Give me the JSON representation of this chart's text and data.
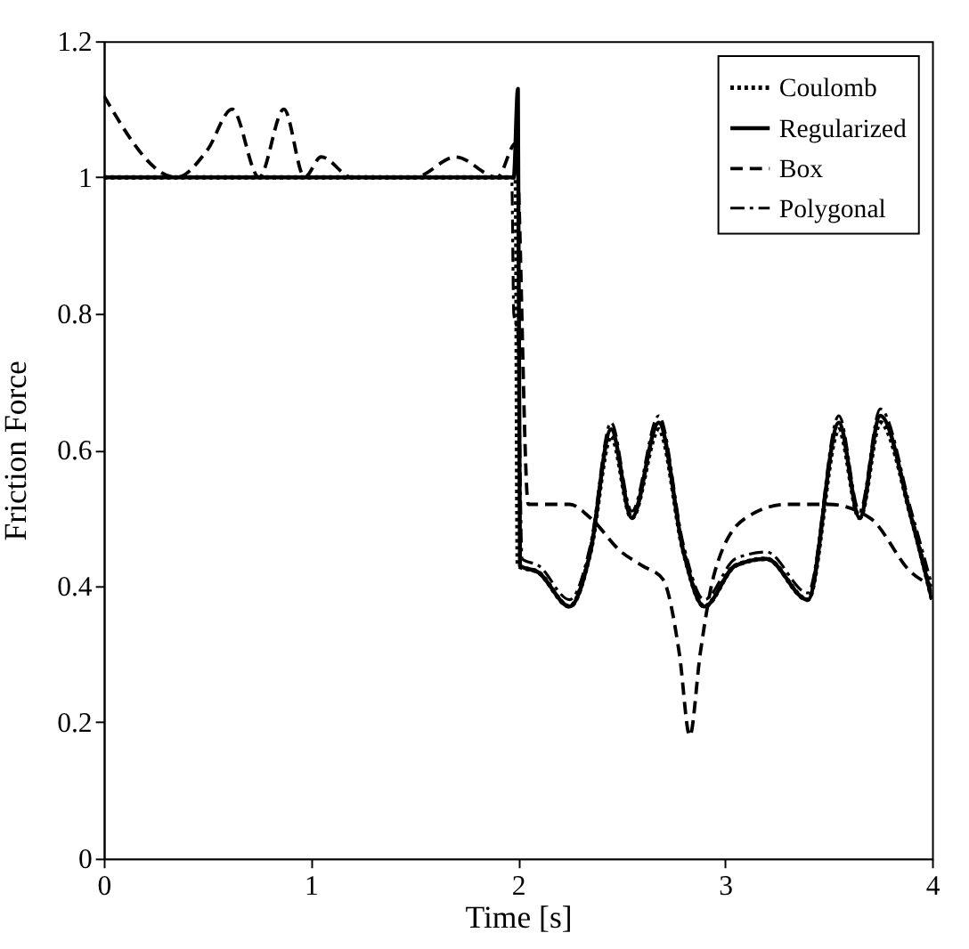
{
  "chart_data": {
    "type": "line",
    "xlabel": "Time [s]",
    "ylabel": "Friction Force",
    "xlim": [
      0,
      4
    ],
    "xticks": [
      0,
      1,
      2,
      3,
      4
    ],
    "ylim": [
      0,
      1.2
    ],
    "yticks": [
      0,
      0.2,
      0.4,
      0.6,
      0.8,
      1,
      1.2
    ],
    "grid": false,
    "legend": "top right",
    "series": [
      {
        "name": "Coulomb",
        "color": "#000000",
        "line_style": "dotted",
        "x": [
          0,
          1,
          1.99,
          2.0,
          2.1,
          2.25,
          2.35,
          2.45,
          2.55,
          2.68,
          2.8,
          2.9,
          3.05,
          3.2,
          3.4,
          3.55,
          3.65,
          3.75,
          3.9,
          4.0
        ],
        "values": [
          1,
          1,
          1,
          0.43,
          0.42,
          0.37,
          0.45,
          0.62,
          0.5,
          0.63,
          0.45,
          0.37,
          0.43,
          0.44,
          0.38,
          0.63,
          0.5,
          0.64,
          0.5,
          0.38
        ]
      },
      {
        "name": "Regularized",
        "color": "#000000",
        "line_style": "solid",
        "x": [
          0,
          1,
          1.98,
          2.0,
          2.01,
          2.1,
          2.25,
          2.35,
          2.45,
          2.55,
          2.68,
          2.8,
          2.9,
          3.05,
          3.2,
          3.4,
          3.55,
          3.65,
          3.75,
          3.9,
          4.0
        ],
        "values": [
          1,
          1,
          1,
          1.13,
          0.43,
          0.42,
          0.37,
          0.45,
          0.63,
          0.5,
          0.64,
          0.45,
          0.37,
          0.43,
          0.44,
          0.38,
          0.64,
          0.5,
          0.65,
          0.5,
          0.38
        ]
      },
      {
        "name": "Box",
        "color": "#000000",
        "line_style": "dashed",
        "x": [
          0,
          0.35,
          0.5,
          0.62,
          0.75,
          0.87,
          0.97,
          1.05,
          1.2,
          1.5,
          1.7,
          1.9,
          1.99,
          2.05,
          2.25,
          2.35,
          2.5,
          2.6,
          2.7,
          2.78,
          2.83,
          2.88,
          2.95,
          3.1,
          3.3,
          3.5,
          3.7,
          3.9,
          4.0
        ],
        "values": [
          1.12,
          1.0,
          1.04,
          1.1,
          1.0,
          1.1,
          1.0,
          1.03,
          1.0,
          1.0,
          1.03,
          1.0,
          1.05,
          0.52,
          0.52,
          0.5,
          0.45,
          0.43,
          0.41,
          0.3,
          0.18,
          0.3,
          0.42,
          0.5,
          0.52,
          0.52,
          0.5,
          0.42,
          0.4
        ]
      },
      {
        "name": "Polygonal",
        "color": "#000000",
        "line_style": "dashdot",
        "x": [
          0,
          1,
          1.97,
          1.98,
          2.0,
          2.02,
          2.1,
          2.25,
          2.35,
          2.45,
          2.55,
          2.68,
          2.8,
          2.9,
          3.05,
          3.2,
          3.4,
          3.55,
          3.65,
          3.75,
          3.9,
          4.0
        ],
        "values": [
          1,
          1,
          1,
          0.8,
          0.77,
          0.44,
          0.43,
          0.38,
          0.46,
          0.64,
          0.51,
          0.65,
          0.46,
          0.38,
          0.44,
          0.45,
          0.39,
          0.65,
          0.51,
          0.66,
          0.51,
          0.4
        ]
      }
    ]
  }
}
